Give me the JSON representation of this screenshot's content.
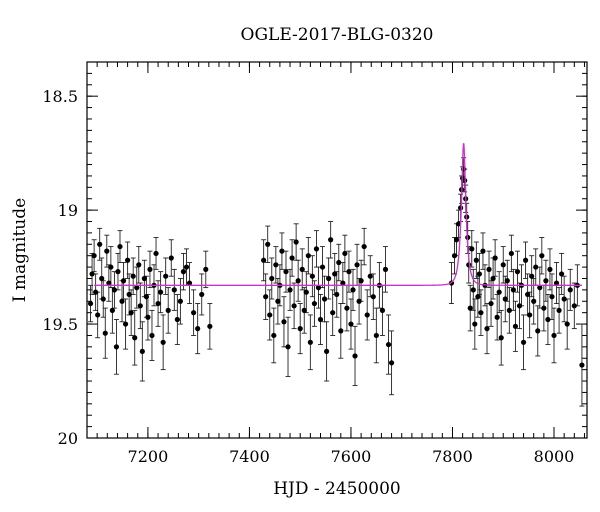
{
  "chart_data": {
    "type": "scatter",
    "title": "OGLE-2017-BLG-0320",
    "xlabel": "HJD - 2450000",
    "ylabel": "I magnitude",
    "xlim": [
      7080,
      8065
    ],
    "ylim": [
      20.0,
      18.35
    ],
    "y_inverted": true,
    "grid": false,
    "x_major_ticks": [
      7200,
      7400,
      7600,
      7800,
      8000
    ],
    "x_minor_step": 20,
    "y_major_ticks": [
      18.5,
      19,
      19.5,
      20
    ],
    "y_tick_labels": [
      "18.5",
      "19",
      "19.5",
      "20"
    ],
    "y_minor_step": 0.05,
    "x_tick_labels": [
      "7200",
      "7400",
      "7600",
      "7800",
      "8000"
    ],
    "baseline_mag": 19.33,
    "model_color": "#cc33cc",
    "point_color": "#000000",
    "model": {
      "name": "",
      "t0": 7822,
      "u0": 0.42,
      "tE": 9
    },
    "series": [
      {
        "name": "",
        "points": [
          {
            "x": 7087,
            "y": 19.41,
            "err": 0.08
          },
          {
            "x": 7090,
            "y": 19.28,
            "err": 0.09
          },
          {
            "x": 7094,
            "y": 19.2,
            "err": 0.07
          },
          {
            "x": 7097,
            "y": 19.36,
            "err": 0.08
          },
          {
            "x": 7101,
            "y": 19.46,
            "err": 0.1
          },
          {
            "x": 7105,
            "y": 19.15,
            "err": 0.07
          },
          {
            "x": 7109,
            "y": 19.3,
            "err": 0.09
          },
          {
            "x": 7112,
            "y": 19.39,
            "err": 0.08
          },
          {
            "x": 7116,
            "y": 19.54,
            "err": 0.11
          },
          {
            "x": 7119,
            "y": 19.18,
            "err": 0.07
          },
          {
            "x": 7123,
            "y": 19.32,
            "err": 0.08
          },
          {
            "x": 7127,
            "y": 19.25,
            "err": 0.09
          },
          {
            "x": 7130,
            "y": 19.44,
            "err": 0.1
          },
          {
            "x": 7134,
            "y": 19.35,
            "err": 0.08
          },
          {
            "x": 7138,
            "y": 19.6,
            "err": 0.12
          },
          {
            "x": 7141,
            "y": 19.27,
            "err": 0.08
          },
          {
            "x": 7145,
            "y": 19.16,
            "err": 0.07
          },
          {
            "x": 7149,
            "y": 19.4,
            "err": 0.09
          },
          {
            "x": 7152,
            "y": 19.31,
            "err": 0.08
          },
          {
            "x": 7156,
            "y": 19.5,
            "err": 0.11
          },
          {
            "x": 7160,
            "y": 19.22,
            "err": 0.08
          },
          {
            "x": 7163,
            "y": 19.37,
            "err": 0.09
          },
          {
            "x": 7167,
            "y": 19.45,
            "err": 0.1
          },
          {
            "x": 7171,
            "y": 19.29,
            "err": 0.08
          },
          {
            "x": 7174,
            "y": 19.56,
            "err": 0.12
          },
          {
            "x": 7178,
            "y": 19.34,
            "err": 0.09
          },
          {
            "x": 7182,
            "y": 19.24,
            "err": 0.08
          },
          {
            "x": 7185,
            "y": 19.42,
            "err": 0.1
          },
          {
            "x": 7189,
            "y": 19.62,
            "err": 0.13
          },
          {
            "x": 7193,
            "y": 19.3,
            "err": 0.08
          },
          {
            "x": 7197,
            "y": 19.38,
            "err": 0.09
          },
          {
            "x": 7200,
            "y": 19.47,
            "err": 0.1
          },
          {
            "x": 7204,
            "y": 19.26,
            "err": 0.08
          },
          {
            "x": 7208,
            "y": 19.55,
            "err": 0.11
          },
          {
            "x": 7212,
            "y": 19.33,
            "err": 0.09
          },
          {
            "x": 7216,
            "y": 19.19,
            "err": 0.07
          },
          {
            "x": 7220,
            "y": 19.41,
            "err": 0.1
          },
          {
            "x": 7225,
            "y": 19.36,
            "err": 0.09
          },
          {
            "x": 7230,
            "y": 19.58,
            "err": 0.12
          },
          {
            "x": 7235,
            "y": 19.29,
            "err": 0.08
          },
          {
            "x": 7240,
            "y": 19.44,
            "err": 0.1
          },
          {
            "x": 7246,
            "y": 19.21,
            "err": 0.08
          },
          {
            "x": 7252,
            "y": 19.35,
            "err": 0.09
          },
          {
            "x": 7258,
            "y": 19.48,
            "err": 0.11
          },
          {
            "x": 7264,
            "y": 19.4,
            "err": 0.1
          },
          {
            "x": 7270,
            "y": 19.27,
            "err": 0.08
          },
          {
            "x": 7276,
            "y": 19.25,
            "err": 0.08
          },
          {
            "x": 7282,
            "y": 19.32,
            "err": 0.09
          },
          {
            "x": 7290,
            "y": 19.45,
            "err": 0.1
          },
          {
            "x": 7298,
            "y": 19.52,
            "err": 0.11
          },
          {
            "x": 7306,
            "y": 19.37,
            "err": 0.09
          },
          {
            "x": 7314,
            "y": 19.26,
            "err": 0.08
          },
          {
            "x": 7322,
            "y": 19.51,
            "err": 0.1
          },
          {
            "x": 7428,
            "y": 19.22,
            "err": 0.09
          },
          {
            "x": 7432,
            "y": 19.38,
            "err": 0.1
          },
          {
            "x": 7436,
            "y": 19.15,
            "err": 0.08
          },
          {
            "x": 7440,
            "y": 19.46,
            "err": 0.11
          },
          {
            "x": 7444,
            "y": 19.3,
            "err": 0.09
          },
          {
            "x": 7448,
            "y": 19.55,
            "err": 0.12
          },
          {
            "x": 7452,
            "y": 19.24,
            "err": 0.08
          },
          {
            "x": 7456,
            "y": 19.4,
            "err": 0.1
          },
          {
            "x": 7460,
            "y": 19.33,
            "err": 0.09
          },
          {
            "x": 7464,
            "y": 19.18,
            "err": 0.08
          },
          {
            "x": 7468,
            "y": 19.49,
            "err": 0.11
          },
          {
            "x": 7472,
            "y": 19.27,
            "err": 0.09
          },
          {
            "x": 7476,
            "y": 19.6,
            "err": 0.13
          },
          {
            "x": 7480,
            "y": 19.35,
            "err": 0.09
          },
          {
            "x": 7484,
            "y": 19.21,
            "err": 0.08
          },
          {
            "x": 7488,
            "y": 19.42,
            "err": 0.1
          },
          {
            "x": 7492,
            "y": 19.14,
            "err": 0.08
          },
          {
            "x": 7496,
            "y": 19.31,
            "err": 0.09
          },
          {
            "x": 7500,
            "y": 19.52,
            "err": 0.11
          },
          {
            "x": 7504,
            "y": 19.26,
            "err": 0.09
          },
          {
            "x": 7508,
            "y": 19.44,
            "err": 0.1
          },
          {
            "x": 7512,
            "y": 19.36,
            "err": 0.09
          },
          {
            "x": 7516,
            "y": 19.2,
            "err": 0.08
          },
          {
            "x": 7520,
            "y": 19.58,
            "err": 0.12
          },
          {
            "x": 7524,
            "y": 19.29,
            "err": 0.09
          },
          {
            "x": 7528,
            "y": 19.41,
            "err": 0.1
          },
          {
            "x": 7532,
            "y": 19.17,
            "err": 0.08
          },
          {
            "x": 7536,
            "y": 19.34,
            "err": 0.09
          },
          {
            "x": 7540,
            "y": 19.48,
            "err": 0.11
          },
          {
            "x": 7544,
            "y": 19.25,
            "err": 0.09
          },
          {
            "x": 7548,
            "y": 19.39,
            "err": 0.1
          },
          {
            "x": 7552,
            "y": 19.62,
            "err": 0.13
          },
          {
            "x": 7556,
            "y": 19.3,
            "err": 0.09
          },
          {
            "x": 7560,
            "y": 19.13,
            "err": 0.08
          },
          {
            "x": 7564,
            "y": 19.45,
            "err": 0.1
          },
          {
            "x": 7568,
            "y": 19.28,
            "err": 0.09
          },
          {
            "x": 7572,
            "y": 19.37,
            "err": 0.1
          },
          {
            "x": 7576,
            "y": 19.23,
            "err": 0.08
          },
          {
            "x": 7580,
            "y": 19.53,
            "err": 0.12
          },
          {
            "x": 7584,
            "y": 19.32,
            "err": 0.09
          },
          {
            "x": 7588,
            "y": 19.19,
            "err": 0.08
          },
          {
            "x": 7592,
            "y": 19.43,
            "err": 0.1
          },
          {
            "x": 7596,
            "y": 19.27,
            "err": 0.09
          },
          {
            "x": 7600,
            "y": 19.5,
            "err": 0.11
          },
          {
            "x": 7604,
            "y": 19.35,
            "err": 0.09
          },
          {
            "x": 7608,
            "y": 19.64,
            "err": 0.13
          },
          {
            "x": 7612,
            "y": 19.24,
            "err": 0.09
          },
          {
            "x": 7616,
            "y": 19.4,
            "err": 0.1
          },
          {
            "x": 7620,
            "y": 19.31,
            "err": 0.09
          },
          {
            "x": 7626,
            "y": 19.16,
            "err": 0.08
          },
          {
            "x": 7632,
            "y": 19.46,
            "err": 0.11
          },
          {
            "x": 7638,
            "y": 19.29,
            "err": 0.09
          },
          {
            "x": 7644,
            "y": 19.38,
            "err": 0.1
          },
          {
            "x": 7650,
            "y": 19.55,
            "err": 0.12
          },
          {
            "x": 7656,
            "y": 19.33,
            "err": 0.1
          },
          {
            "x": 7662,
            "y": 19.44,
            "err": 0.11
          },
          {
            "x": 7668,
            "y": 19.26,
            "err": 0.1
          },
          {
            "x": 7674,
            "y": 19.59,
            "err": 0.13
          },
          {
            "x": 7680,
            "y": 19.67,
            "err": 0.14
          },
          {
            "x": 7798,
            "y": 19.32,
            "err": 0.09
          },
          {
            "x": 7804,
            "y": 19.2,
            "err": 0.08
          },
          {
            "x": 7808,
            "y": 19.13,
            "err": 0.07
          },
          {
            "x": 7812,
            "y": 19.06,
            "err": 0.06
          },
          {
            "x": 7816,
            "y": 18.99,
            "err": 0.06
          },
          {
            "x": 7818,
            "y": 18.91,
            "err": 0.06
          },
          {
            "x": 7820,
            "y": 18.86,
            "err": 0.05
          },
          {
            "x": 7822,
            "y": 18.82,
            "err": 0.05
          },
          {
            "x": 7824,
            "y": 18.87,
            "err": 0.05
          },
          {
            "x": 7826,
            "y": 18.95,
            "err": 0.06
          },
          {
            "x": 7828,
            "y": 19.03,
            "err": 0.06
          },
          {
            "x": 7830,
            "y": 19.12,
            "err": 0.07
          },
          {
            "x": 7832,
            "y": 19.24,
            "err": 0.08
          },
          {
            "x": 7835,
            "y": 19.43,
            "err": 0.1
          },
          {
            "x": 7838,
            "y": 19.17,
            "err": 0.08
          },
          {
            "x": 7841,
            "y": 19.35,
            "err": 0.09
          },
          {
            "x": 7844,
            "y": 19.5,
            "err": 0.11
          },
          {
            "x": 7847,
            "y": 19.22,
            "err": 0.08
          },
          {
            "x": 7850,
            "y": 19.38,
            "err": 0.09
          },
          {
            "x": 7853,
            "y": 19.28,
            "err": 0.09
          },
          {
            "x": 7856,
            "y": 19.45,
            "err": 0.1
          },
          {
            "x": 7860,
            "y": 19.18,
            "err": 0.08
          },
          {
            "x": 7864,
            "y": 19.33,
            "err": 0.09
          },
          {
            "x": 7868,
            "y": 19.52,
            "err": 0.11
          },
          {
            "x": 7872,
            "y": 19.26,
            "err": 0.08
          },
          {
            "x": 7876,
            "y": 19.41,
            "err": 0.1
          },
          {
            "x": 7880,
            "y": 19.3,
            "err": 0.09
          },
          {
            "x": 7884,
            "y": 19.21,
            "err": 0.08
          },
          {
            "x": 7888,
            "y": 19.47,
            "err": 0.1
          },
          {
            "x": 7892,
            "y": 19.36,
            "err": 0.09
          },
          {
            "x": 7896,
            "y": 19.56,
            "err": 0.12
          },
          {
            "x": 7900,
            "y": 19.24,
            "err": 0.08
          },
          {
            "x": 7904,
            "y": 19.39,
            "err": 0.1
          },
          {
            "x": 7908,
            "y": 19.31,
            "err": 0.09
          },
          {
            "x": 7912,
            "y": 19.44,
            "err": 0.1
          },
          {
            "x": 7916,
            "y": 19.19,
            "err": 0.08
          },
          {
            "x": 7920,
            "y": 19.35,
            "err": 0.09
          },
          {
            "x": 7924,
            "y": 19.51,
            "err": 0.11
          },
          {
            "x": 7928,
            "y": 19.27,
            "err": 0.09
          },
          {
            "x": 7932,
            "y": 19.42,
            "err": 0.1
          },
          {
            "x": 7936,
            "y": 19.33,
            "err": 0.09
          },
          {
            "x": 7940,
            "y": 19.58,
            "err": 0.12
          },
          {
            "x": 7944,
            "y": 19.22,
            "err": 0.08
          },
          {
            "x": 7948,
            "y": 19.37,
            "err": 0.09
          },
          {
            "x": 7952,
            "y": 19.46,
            "err": 0.1
          },
          {
            "x": 7956,
            "y": 19.29,
            "err": 0.09
          },
          {
            "x": 7960,
            "y": 19.4,
            "err": 0.1
          },
          {
            "x": 7964,
            "y": 19.25,
            "err": 0.08
          },
          {
            "x": 7968,
            "y": 19.53,
            "err": 0.11
          },
          {
            "x": 7972,
            "y": 19.34,
            "err": 0.09
          },
          {
            "x": 7976,
            "y": 19.2,
            "err": 0.08
          },
          {
            "x": 7980,
            "y": 19.43,
            "err": 0.1
          },
          {
            "x": 7984,
            "y": 19.31,
            "err": 0.09
          },
          {
            "x": 7988,
            "y": 19.48,
            "err": 0.11
          },
          {
            "x": 7992,
            "y": 19.26,
            "err": 0.09
          },
          {
            "x": 7996,
            "y": 19.38,
            "err": 0.1
          },
          {
            "x": 8000,
            "y": 19.55,
            "err": 0.12
          },
          {
            "x": 8005,
            "y": 19.32,
            "err": 0.09
          },
          {
            "x": 8010,
            "y": 19.44,
            "err": 0.1
          },
          {
            "x": 8015,
            "y": 19.28,
            "err": 0.09
          },
          {
            "x": 8020,
            "y": 19.39,
            "err": 0.1
          },
          {
            "x": 8026,
            "y": 19.5,
            "err": 0.11
          },
          {
            "x": 8032,
            "y": 19.35,
            "err": 0.09
          },
          {
            "x": 8040,
            "y": 19.42,
            "err": 0.1
          },
          {
            "x": 8046,
            "y": 19.33,
            "err": 0.09
          },
          {
            "x": 8055,
            "y": 19.68,
            "err": 0.18
          }
        ]
      }
    ]
  }
}
